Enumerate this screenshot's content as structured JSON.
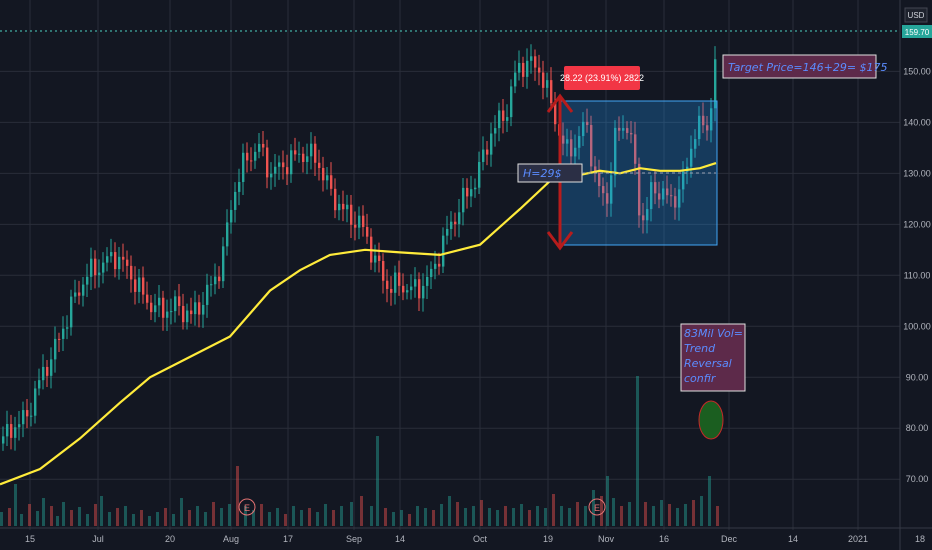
{
  "chart_data": {
    "type": "candlestick",
    "currency": "USD",
    "last_price": "159.70",
    "y_range": [
      62,
      164
    ],
    "y_ticks": [
      "70.00",
      "80.00",
      "90.00",
      "100.00",
      "110.00",
      "120.00",
      "130.00",
      "140.00",
      "150.00"
    ],
    "x_ticks": [
      "15",
      "Jul",
      "20",
      "Aug",
      "17",
      "Sep",
      "14",
      "Oct",
      "19",
      "Nov",
      "16",
      "Dec",
      "14",
      "2021",
      "18"
    ],
    "price_path": [
      [
        0,
        77
      ],
      [
        10,
        80
      ],
      [
        25,
        82
      ],
      [
        40,
        90
      ],
      [
        55,
        96
      ],
      [
        70,
        104
      ],
      [
        85,
        110
      ],
      [
        100,
        112
      ],
      [
        115,
        114
      ],
      [
        130,
        110
      ],
      [
        145,
        105
      ],
      [
        160,
        103
      ],
      [
        175,
        104
      ],
      [
        190,
        102
      ],
      [
        205,
        106
      ],
      [
        220,
        112
      ],
      [
        232,
        126
      ],
      [
        245,
        133
      ],
      [
        258,
        135
      ],
      [
        270,
        130
      ],
      [
        285,
        132
      ],
      [
        300,
        134
      ],
      [
        315,
        133
      ],
      [
        330,
        126
      ],
      [
        345,
        122
      ],
      [
        360,
        120
      ],
      [
        372,
        114
      ],
      [
        385,
        108
      ],
      [
        400,
        108
      ],
      [
        415,
        107
      ],
      [
        430,
        110
      ],
      [
        445,
        118
      ],
      [
        460,
        124
      ],
      [
        475,
        129
      ],
      [
        490,
        138
      ],
      [
        505,
        142
      ],
      [
        515,
        150
      ],
      [
        525,
        152
      ],
      [
        540,
        150
      ],
      [
        555,
        140
      ],
      [
        565,
        134
      ],
      [
        575,
        136
      ],
      [
        585,
        140
      ],
      [
        595,
        128
      ],
      [
        605,
        124
      ],
      [
        615,
        138
      ],
      [
        628,
        140
      ],
      [
        640,
        120
      ],
      [
        650,
        126
      ],
      [
        660,
        127
      ],
      [
        670,
        124
      ],
      [
        685,
        130
      ],
      [
        695,
        140
      ],
      [
        705,
        138
      ],
      [
        712,
        146
      ],
      [
        716,
        159.7
      ]
    ],
    "ma_path": [
      [
        0,
        69
      ],
      [
        40,
        72
      ],
      [
        80,
        78
      ],
      [
        120,
        85
      ],
      [
        150,
        90
      ],
      [
        190,
        94
      ],
      [
        230,
        98
      ],
      [
        270,
        107
      ],
      [
        300,
        111
      ],
      [
        330,
        114
      ],
      [
        365,
        115
      ],
      [
        400,
        114.5
      ],
      [
        440,
        114
      ],
      [
        480,
        116
      ],
      [
        520,
        123
      ],
      [
        550,
        128.5
      ],
      [
        575,
        129.5
      ],
      [
        600,
        130.5
      ],
      [
        620,
        130
      ],
      [
        640,
        131
      ],
      [
        660,
        130.5
      ],
      [
        680,
        130.5
      ],
      [
        700,
        131
      ],
      [
        716,
        132
      ]
    ],
    "volume_bars": [
      [
        0,
        14
      ],
      [
        8,
        18
      ],
      [
        14,
        42
      ],
      [
        20,
        12
      ],
      [
        28,
        22
      ],
      [
        36,
        15
      ],
      [
        42,
        28
      ],
      [
        50,
        20
      ],
      [
        56,
        10
      ],
      [
        62,
        24
      ],
      [
        70,
        16
      ],
      [
        78,
        19
      ],
      [
        86,
        12
      ],
      [
        94,
        22
      ],
      [
        100,
        30
      ],
      [
        108,
        14
      ],
      [
        116,
        18
      ],
      [
        124,
        20
      ],
      [
        132,
        12
      ],
      [
        140,
        16
      ],
      [
        148,
        10
      ],
      [
        156,
        14
      ],
      [
        164,
        18
      ],
      [
        172,
        12
      ],
      [
        180,
        28
      ],
      [
        188,
        16
      ],
      [
        196,
        20
      ],
      [
        204,
        14
      ],
      [
        212,
        24
      ],
      [
        220,
        18
      ],
      [
        228,
        22
      ],
      [
        236,
        60
      ],
      [
        244,
        20
      ],
      [
        252,
        16
      ],
      [
        260,
        22
      ],
      [
        268,
        14
      ],
      [
        276,
        18
      ],
      [
        284,
        12
      ],
      [
        292,
        20
      ],
      [
        300,
        16
      ],
      [
        308,
        18
      ],
      [
        316,
        14
      ],
      [
        324,
        22
      ],
      [
        332,
        16
      ],
      [
        340,
        20
      ],
      [
        350,
        24
      ],
      [
        360,
        30
      ],
      [
        370,
        20
      ],
      [
        376,
        90
      ],
      [
        384,
        18
      ],
      [
        392,
        14
      ],
      [
        400,
        16
      ],
      [
        408,
        12
      ],
      [
        416,
        20
      ],
      [
        424,
        18
      ],
      [
        432,
        16
      ],
      [
        440,
        22
      ],
      [
        448,
        30
      ],
      [
        456,
        24
      ],
      [
        464,
        18
      ],
      [
        472,
        20
      ],
      [
        480,
        26
      ],
      [
        488,
        18
      ],
      [
        496,
        16
      ],
      [
        504,
        20
      ],
      [
        512,
        18
      ],
      [
        520,
        22
      ],
      [
        528,
        16
      ],
      [
        536,
        20
      ],
      [
        544,
        18
      ],
      [
        552,
        32
      ],
      [
        560,
        20
      ],
      [
        568,
        18
      ],
      [
        576,
        24
      ],
      [
        584,
        20
      ],
      [
        592,
        36
      ],
      [
        600,
        30
      ],
      [
        606,
        50
      ],
      [
        612,
        28
      ],
      [
        620,
        20
      ],
      [
        628,
        24
      ],
      [
        636,
        150
      ],
      [
        644,
        24
      ],
      [
        652,
        20
      ],
      [
        660,
        26
      ],
      [
        668,
        22
      ],
      [
        676,
        18
      ],
      [
        684,
        22
      ],
      [
        692,
        26
      ],
      [
        700,
        30
      ],
      [
        708,
        50
      ],
      [
        716,
        20
      ]
    ],
    "measure_label": "28.22 (23.91%) 2822",
    "height_note": "H=29$",
    "target_note": "Target Price=146+29= $175",
    "volume_note": [
      "83Mil Vol=",
      "Trend",
      "Reversal",
      "confir"
    ],
    "earnings_marker": "E",
    "colors": {
      "background": "#131722",
      "up": "#26a69a",
      "down": "#ef5350",
      "ma": "#ffeb3b",
      "box": "#2196f3",
      "arrow": "#b71c1c",
      "note": "#5b8cff"
    }
  }
}
